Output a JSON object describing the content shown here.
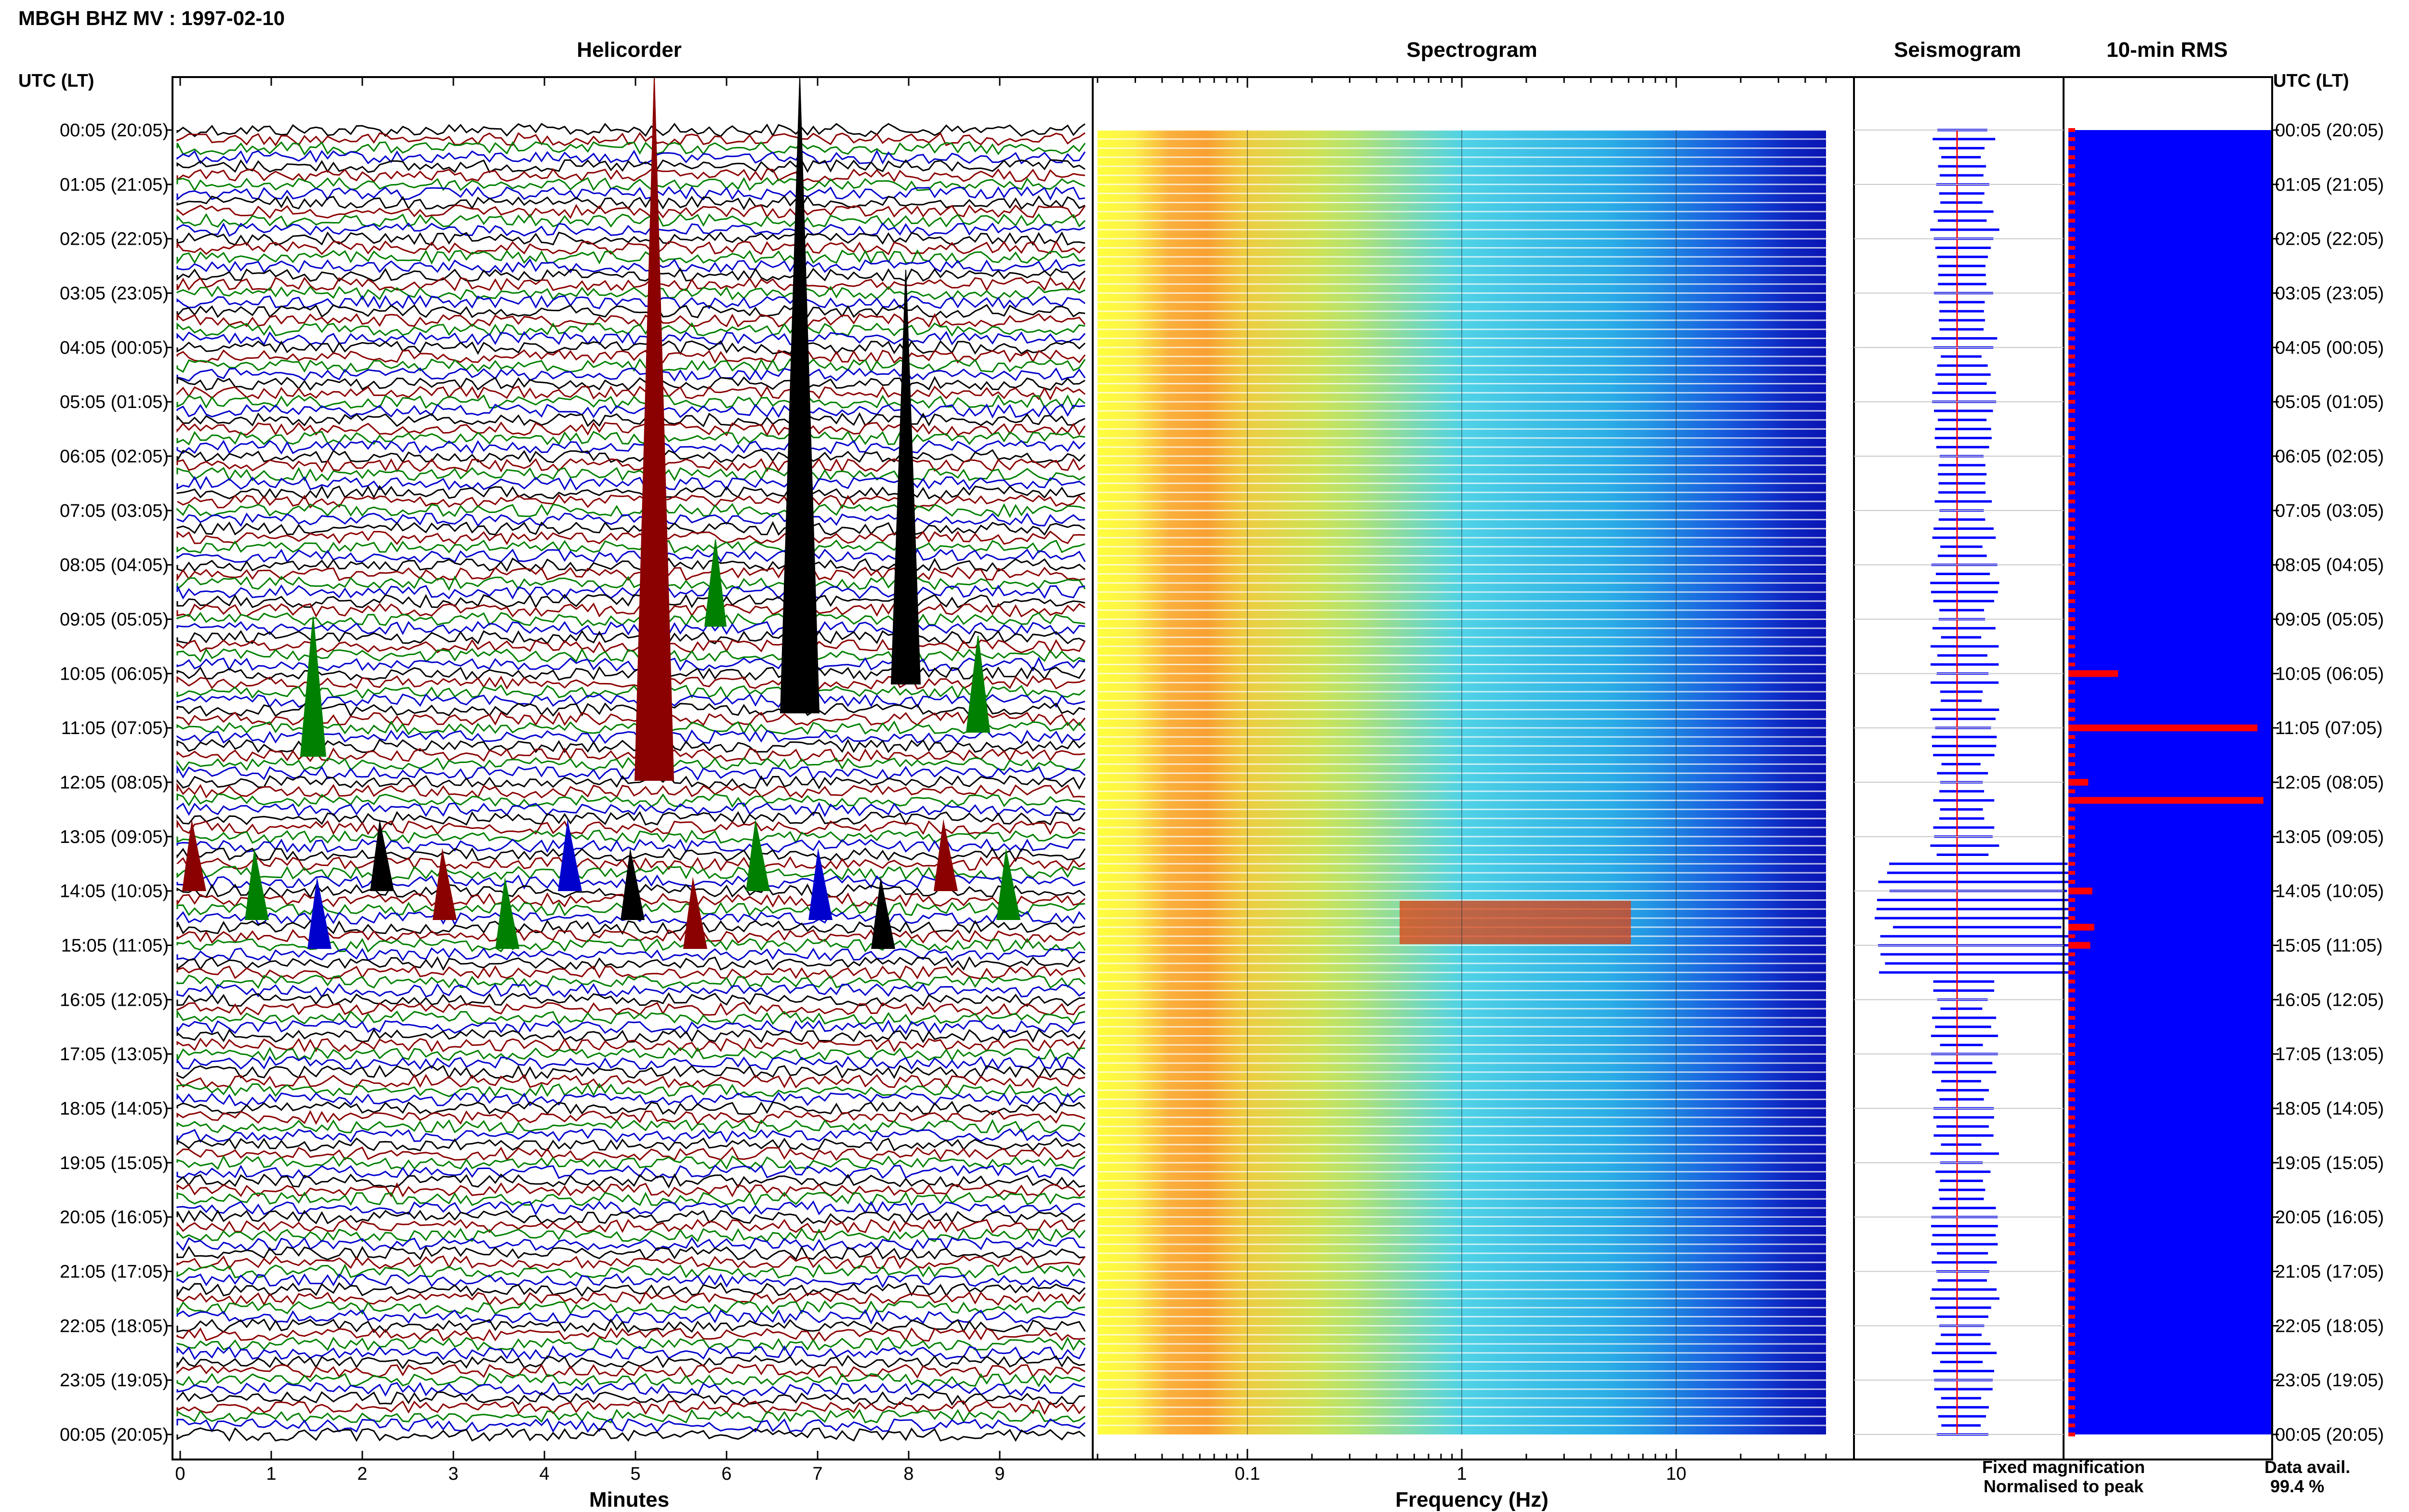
{
  "title": "MBGH BHZ MV : 1997-02-10",
  "panels": {
    "helicorder": "Helicorder",
    "spectrogram": "Spectrogram",
    "seismogram": "Seismogram",
    "rms": "10-min RMS"
  },
  "y_axis_label": "UTC (LT)",
  "time_labels": [
    "00:05 (20:05)",
    "01:05 (21:05)",
    "02:05 (22:05)",
    "03:05 (23:05)",
    "04:05 (00:05)",
    "05:05 (01:05)",
    "06:05 (02:05)",
    "07:05 (03:05)",
    "08:05 (04:05)",
    "09:05 (05:05)",
    "10:05 (06:05)",
    "11:05 (07:05)",
    "12:05 (08:05)",
    "13:05 (09:05)",
    "14:05 (10:05)",
    "15:05 (11:05)",
    "16:05 (12:05)",
    "17:05 (13:05)",
    "18:05 (14:05)",
    "19:05 (15:05)",
    "20:05 (16:05)",
    "21:05 (17:05)",
    "22:05 (18:05)",
    "23:05 (19:05)",
    "00:05 (20:05)"
  ],
  "x_axes": {
    "helicorder": {
      "label": "Minutes",
      "ticks": [
        "0",
        "1",
        "2",
        "3",
        "4",
        "5",
        "6",
        "7",
        "8",
        "9"
      ],
      "range": [
        0,
        10
      ]
    },
    "spectrogram": {
      "label": "Frequency (Hz)",
      "ticks": [
        "0.1",
        "1",
        "10"
      ],
      "scale": "log",
      "range": [
        0.02,
        50
      ]
    }
  },
  "legend": {
    "fixed": "Fixed magnification",
    "normalised": "Normalised to peak",
    "data_avail_label": "Data avail.",
    "data_avail_value": "99.4 %"
  },
  "colors": {
    "black": "#000000",
    "red": "#8b0000",
    "green": "#008000",
    "blue": "#0000cd",
    "rms_fill": "#0000ff",
    "rms_peak": "#ff0000",
    "legend_fixed": "#0000ff",
    "legend_norm": "#ff0000"
  },
  "chart_data": {
    "type": "heatmap",
    "title": "MBGH BHZ MV : 1997-02-10",
    "rows_per_hour": 6,
    "helicorder_trace_colors": [
      "black",
      "red",
      "green",
      "blue"
    ],
    "rms_spikes": [
      {
        "time": "10:05",
        "relative": 0.25
      },
      {
        "time": "11:05",
        "relative": 0.95
      },
      {
        "time": "12:05",
        "relative": 0.1
      },
      {
        "time": "12:25",
        "relative": 0.98
      },
      {
        "time": "14:05",
        "relative": 0.12
      },
      {
        "time": "14:45",
        "relative": 0.13
      },
      {
        "time": "15:05",
        "relative": 0.11
      }
    ]
  }
}
